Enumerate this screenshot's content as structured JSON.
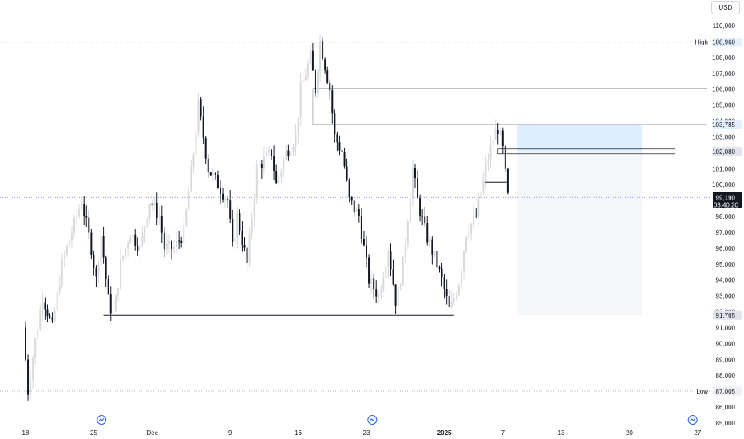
{
  "currency": "USD",
  "chart_data": {
    "type": "candlestick",
    "y_ticks": [
      "110,000",
      "109,000",
      "108,000",
      "107,000",
      "106,000",
      "105,000",
      "104,000",
      "103,000",
      "102,000",
      "101,000",
      "100,000",
      "99,000",
      "98,000",
      "97,000",
      "96,000",
      "95,000",
      "94,000",
      "93,000",
      "92,000",
      "91,000",
      "90,000",
      "89,000",
      "88,000",
      "87,000",
      "86,000",
      "85,000"
    ],
    "y_tick_values": [
      110000,
      109000,
      108000,
      107000,
      106000,
      105000,
      104000,
      103000,
      102000,
      101000,
      100000,
      99000,
      98000,
      97000,
      96000,
      95000,
      94000,
      93000,
      92000,
      91000,
      90000,
      89000,
      88000,
      87000,
      86000,
      85000
    ],
    "ylim": [
      84800,
      111200
    ],
    "x_ticks": [
      {
        "label": "18",
        "day": 0,
        "bold": false
      },
      {
        "label": "25",
        "day": 7,
        "bold": false
      },
      {
        "label": "Dec",
        "day": 13,
        "bold": false
      },
      {
        "label": "9",
        "day": 21,
        "bold": false
      },
      {
        "label": "16",
        "day": 28,
        "bold": false
      },
      {
        "label": "23",
        "day": 35,
        "bold": false
      },
      {
        "label": "2025",
        "day": 43,
        "bold": true
      },
      {
        "label": "7",
        "day": 49,
        "bold": false
      },
      {
        "label": "13",
        "day": 55,
        "bold": false
      },
      {
        "label": "20",
        "day": 62,
        "bold": false
      },
      {
        "label": "27",
        "day": 69,
        "bold": false
      }
    ],
    "price_tags": {
      "high": {
        "label": "High",
        "value": "108,960",
        "price": 108960
      },
      "low": {
        "label": "Low",
        "value": "87,005",
        "price": 87005
      },
      "level_103785": {
        "value": "103,785",
        "price": 103785
      },
      "level_102080": {
        "value": "102,080",
        "price": 102080
      },
      "level_91765": {
        "value": "91,765",
        "price": 91765
      },
      "last": {
        "value": "99,190",
        "countdown": "03:40:20",
        "price": 99190
      }
    },
    "horizontal_lines": [
      {
        "price": 106050,
        "from_day": 29.5,
        "to_day": 70
      },
      {
        "price": 103785,
        "from_day": 29.5,
        "to_day": 70
      },
      {
        "price": 91765,
        "from_day": 8,
        "to_day": 44
      }
    ],
    "position_box": {
      "from_day": 50.5,
      "to_day": 63.3,
      "entry": 102080,
      "target": 103785,
      "stop": 91765
    },
    "entry_marker": {
      "from_day": 48.5,
      "to_day": 66.7,
      "price": 102080
    },
    "colors": {
      "up": "#d7d9dd",
      "down": "#131722",
      "dotted": "#b2b5be",
      "last_line": "#9598f5",
      "target_fill": "#ddeefe",
      "stop_fill": "#f5f6f9",
      "high_tag_bg": "#e3effd",
      "dark_tag": "#131722"
    }
  }
}
